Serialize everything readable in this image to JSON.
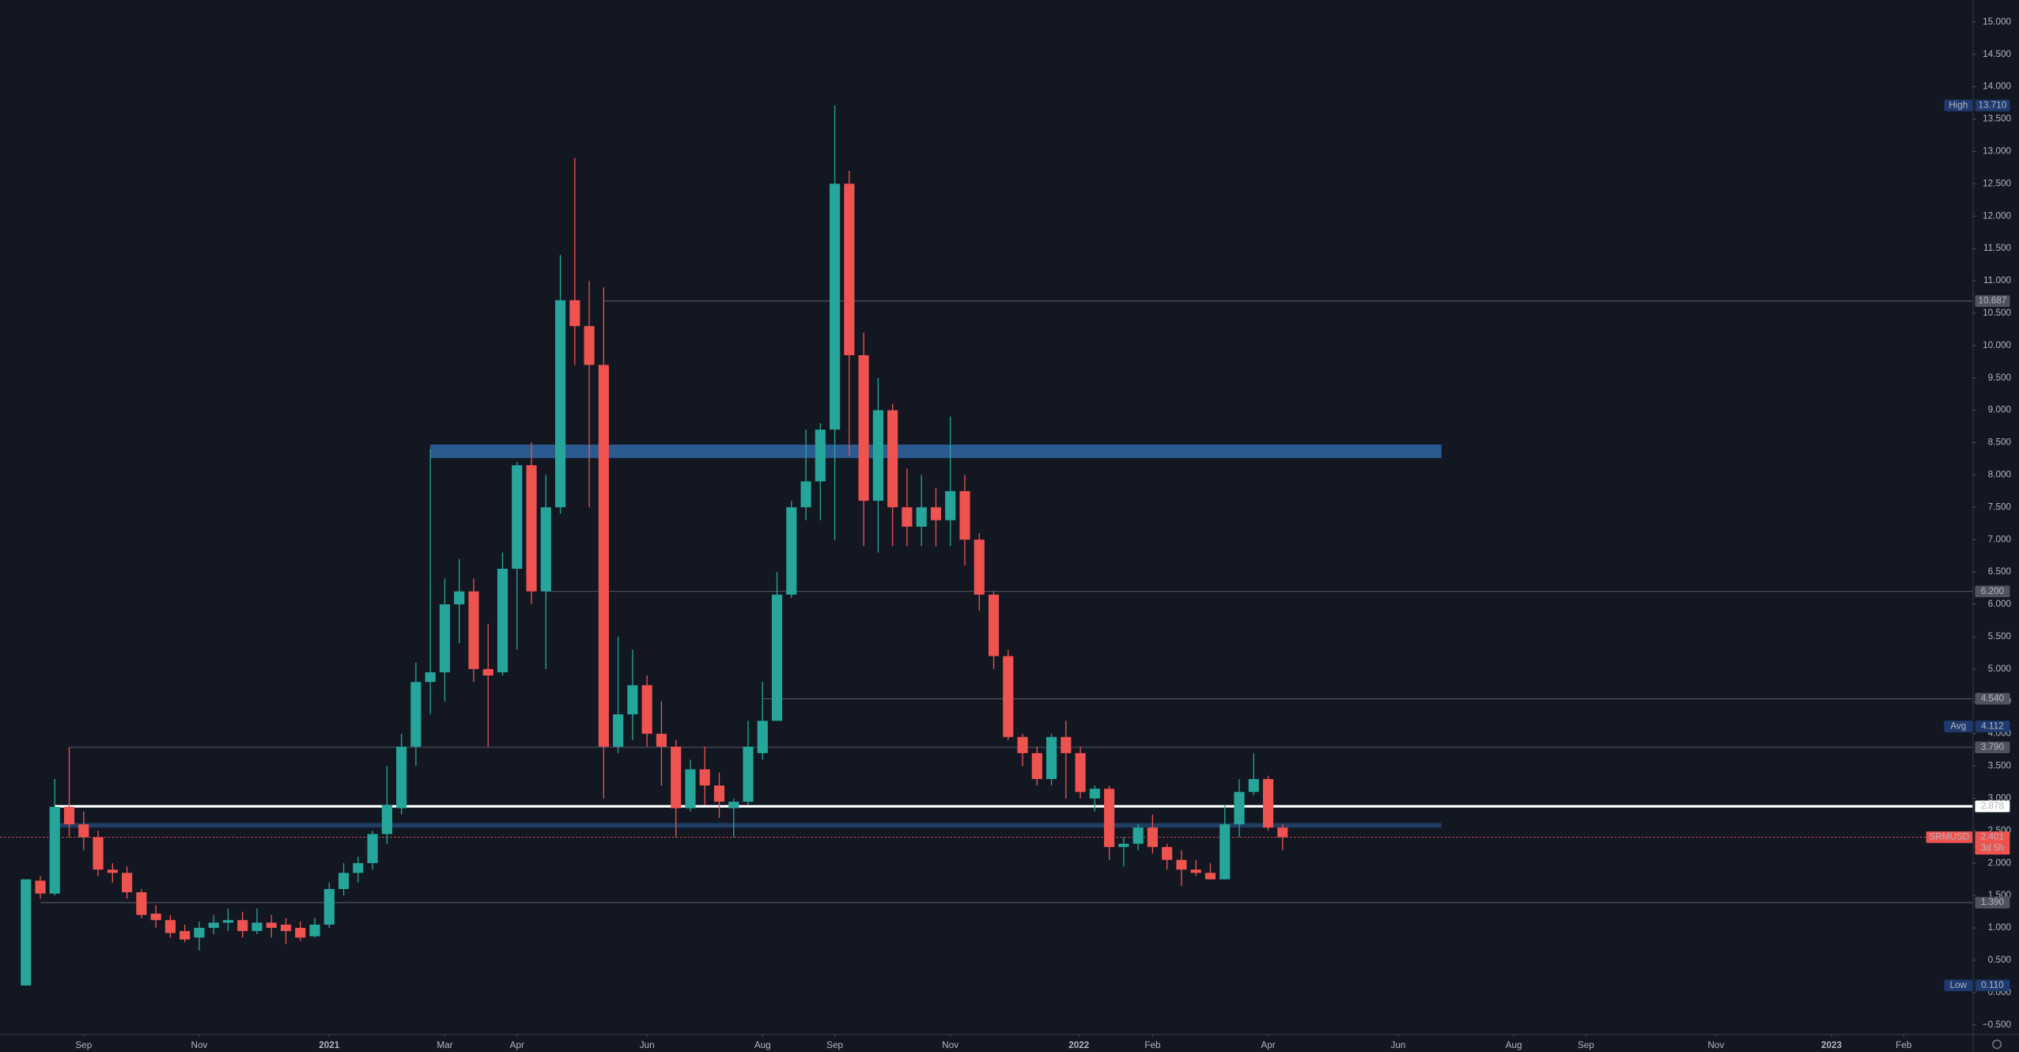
{
  "chart_data": {
    "type": "candlestick",
    "symbol": "SRMUSD",
    "countdown": "3d 5h",
    "up_color": "#26a69a",
    "down_color": "#ef5350",
    "open": [
      0.11,
      1.73,
      1.53,
      2.87,
      2.6,
      2.4,
      1.9,
      1.85,
      1.55,
      1.22,
      1.12,
      0.95,
      0.85,
      1.0,
      1.08,
      1.12,
      0.95,
      1.08,
      1.05,
      1.0,
      0.87,
      1.05,
      1.6,
      1.85,
      2.0,
      2.45,
      2.85,
      3.8,
      4.8,
      4.95,
      6.0,
      6.2,
      5.0,
      4.95,
      6.55,
      8.15,
      6.2,
      7.5,
      10.7,
      10.3,
      9.7,
      3.8,
      4.3,
      4.75,
      4.0,
      3.8,
      2.85,
      3.45,
      3.2,
      2.85,
      2.95,
      3.7,
      4.2,
      6.15,
      7.5,
      7.9,
      8.7,
      12.5,
      9.85,
      7.6,
      9.0,
      7.5,
      7.2,
      7.5,
      7.3,
      7.75,
      7.0,
      6.15,
      5.2,
      3.95,
      3.7,
      3.3,
      3.95,
      3.7,
      3.0,
      3.15,
      2.25,
      2.3,
      2.55,
      2.25,
      2.05,
      1.9,
      1.85,
      1.75,
      2.6,
      3.1,
      3.3,
      2.55
    ],
    "high": [
      1.75,
      1.8,
      3.3,
      3.79,
      2.8,
      2.5,
      2.0,
      1.95,
      1.6,
      1.35,
      1.2,
      1.05,
      1.1,
      1.2,
      1.3,
      1.25,
      1.3,
      1.2,
      1.15,
      1.1,
      1.15,
      1.7,
      2.0,
      2.1,
      2.5,
      3.5,
      4.0,
      5.1,
      8.4,
      6.4,
      6.7,
      6.4,
      5.7,
      6.8,
      8.2,
      8.5,
      8.0,
      11.4,
      12.9,
      11.0,
      10.9,
      5.5,
      5.3,
      4.9,
      4.5,
      3.9,
      3.6,
      3.8,
      3.4,
      3.0,
      4.2,
      4.8,
      6.5,
      7.6,
      8.7,
      8.8,
      13.71,
      12.7,
      10.2,
      9.5,
      9.1,
      8.1,
      8.0,
      7.8,
      8.9,
      8.0,
      7.1,
      6.2,
      5.3,
      4.0,
      3.8,
      4.0,
      4.2,
      3.8,
      3.2,
      3.2,
      2.4,
      2.6,
      2.75,
      2.3,
      2.2,
      2.05,
      2.0,
      2.9,
      3.3,
      3.7,
      3.35,
      2.6
    ],
    "low": [
      0.11,
      1.45,
      1.5,
      2.4,
      2.2,
      1.8,
      1.7,
      1.45,
      1.15,
      1.0,
      0.85,
      0.78,
      0.65,
      0.9,
      0.95,
      0.85,
      0.9,
      0.85,
      0.75,
      0.8,
      0.85,
      1.0,
      1.5,
      1.7,
      1.9,
      2.3,
      2.75,
      3.5,
      4.3,
      4.5,
      5.4,
      4.8,
      3.8,
      4.9,
      5.3,
      6.0,
      5.0,
      7.4,
      9.7,
      7.5,
      3.0,
      3.7,
      3.9,
      3.8,
      3.2,
      2.4,
      2.8,
      2.9,
      2.7,
      2.4,
      2.9,
      3.6,
      4.2,
      6.1,
      7.3,
      7.3,
      7.0,
      8.3,
      6.9,
      6.8,
      6.9,
      6.9,
      6.9,
      6.9,
      6.9,
      6.6,
      5.9,
      5.0,
      3.9,
      3.5,
      3.2,
      3.2,
      3.0,
      3.0,
      2.8,
      2.05,
      1.95,
      2.2,
      2.15,
      1.9,
      1.65,
      1.8,
      1.75,
      1.75,
      2.4,
      3.05,
      2.5,
      2.2
    ],
    "close": [
      1.75,
      1.53,
      2.87,
      2.6,
      2.4,
      1.9,
      1.85,
      1.55,
      1.2,
      1.12,
      0.92,
      0.82,
      1.0,
      1.08,
      1.12,
      0.95,
      1.08,
      1.0,
      0.95,
      0.85,
      1.05,
      1.6,
      1.85,
      2.0,
      2.45,
      2.9,
      3.8,
      4.8,
      4.95,
      6.0,
      6.2,
      5.0,
      4.9,
      6.55,
      8.15,
      6.2,
      7.5,
      10.7,
      10.3,
      9.7,
      3.8,
      4.3,
      4.75,
      4.0,
      3.8,
      2.85,
      3.45,
      3.2,
      2.95,
      2.95,
      3.8,
      4.2,
      6.15,
      7.5,
      7.9,
      8.7,
      12.5,
      9.85,
      7.6,
      9.0,
      7.5,
      7.2,
      7.5,
      7.3,
      7.75,
      7.0,
      6.15,
      5.2,
      3.95,
      3.7,
      3.3,
      3.95,
      3.7,
      3.1,
      3.15,
      2.25,
      2.3,
      2.55,
      2.25,
      2.05,
      1.9,
      1.85,
      1.75,
      2.6,
      3.1,
      3.3,
      2.55,
      2.4
    ],
    "xlim": [
      -1.78,
      134.76
    ],
    "xticks": [
      {
        "value": 4.0,
        "label": "Sep"
      },
      {
        "value": 12.0,
        "label": "Nov"
      },
      {
        "value": 21.0,
        "label": "2021"
      },
      {
        "value": 29.0,
        "label": "Mar"
      },
      {
        "value": 34.0,
        "label": "Apr"
      },
      {
        "value": 43.0,
        "label": "Jun"
      },
      {
        "value": 51.0,
        "label": "Aug"
      },
      {
        "value": 56.0,
        "label": "Sep"
      },
      {
        "value": 64.0,
        "label": "Nov"
      },
      {
        "value": 72.9,
        "label": "2022"
      },
      {
        "value": 78.0,
        "label": "Feb"
      },
      {
        "value": 86.0,
        "label": "Apr"
      },
      {
        "value": 95.0,
        "label": "Jun"
      },
      {
        "value": 103.0,
        "label": "Aug"
      },
      {
        "value": 108.0,
        "label": "Sep"
      },
      {
        "value": 117.0,
        "label": "Nov"
      },
      {
        "value": 125.0,
        "label": "2023"
      },
      {
        "value": 130.0,
        "label": "Feb"
      }
    ],
    "ylim": [
      -0.64,
      15.34
    ],
    "yticks": [
      {
        "value": -0.5,
        "label": "−0.500"
      },
      {
        "value": 0,
        "label": "0.000"
      },
      {
        "value": 0.5,
        "label": "0.500"
      },
      {
        "value": 1,
        "label": "1.000"
      },
      {
        "value": 1.5,
        "label": "1.500"
      },
      {
        "value": 2,
        "label": "2.000"
      },
      {
        "value": 2.5,
        "label": "2.500"
      },
      {
        "value": 3,
        "label": "3.000"
      },
      {
        "value": 3.5,
        "label": "3.500"
      },
      {
        "value": 4,
        "label": "4.000"
      },
      {
        "value": 4.5,
        "label": "4.500"
      },
      {
        "value": 5,
        "label": "5.000"
      },
      {
        "value": 5.5,
        "label": "5.500"
      },
      {
        "value": 6,
        "label": "6.000"
      },
      {
        "value": 6.5,
        "label": "6.500"
      },
      {
        "value": 7,
        "label": "7.000"
      },
      {
        "value": 7.5,
        "label": "7.500"
      },
      {
        "value": 8,
        "label": "8.000"
      },
      {
        "value": 8.5,
        "label": "8.500"
      },
      {
        "value": 9,
        "label": "9.000"
      },
      {
        "value": 9.5,
        "label": "9.500"
      },
      {
        "value": 10,
        "label": "10.000"
      },
      {
        "value": 10.5,
        "label": "10.500"
      },
      {
        "value": 11,
        "label": "11.000"
      },
      {
        "value": 11.5,
        "label": "11.500"
      },
      {
        "value": 12,
        "label": "12.000"
      },
      {
        "value": 12.5,
        "label": "12.500"
      },
      {
        "value": 13,
        "label": "13.000"
      },
      {
        "value": 13.5,
        "label": "13.500"
      },
      {
        "value": 14,
        "label": "14.000"
      },
      {
        "value": 14.5,
        "label": "14.500"
      },
      {
        "value": 15,
        "label": "15.000"
      }
    ],
    "levels": [
      {
        "name": "High",
        "value": 13.71,
        "label": "13.710",
        "style": "marker"
      },
      {
        "value": 10.687,
        "label": "10.687",
        "style": "gray",
        "from": 40
      },
      {
        "value": 6.2,
        "label": "6.200",
        "style": "gray",
        "from": 36
      },
      {
        "value": 4.54,
        "label": "4.540",
        "style": "gray",
        "from": 51
      },
      {
        "name": "Avg",
        "value": 4.112,
        "label": "4.112",
        "style": "marker"
      },
      {
        "value": 3.79,
        "label": "3.790",
        "style": "gray",
        "from": 3
      },
      {
        "value": 2.878,
        "label": "2.878",
        "style": "white",
        "from": 2
      },
      {
        "value": 1.39,
        "label": "1.390",
        "style": "gray",
        "from": 1
      },
      {
        "name": "Low",
        "value": 0.11,
        "label": "0.110",
        "style": "marker"
      }
    ],
    "last_price": {
      "value": 2.401,
      "label": "2.401"
    },
    "zones": [
      {
        "low": 8.26,
        "high": 8.47,
        "from": 28.0,
        "to": 98.0,
        "color": "#2a5a8f"
      },
      {
        "low": 2.55,
        "high": 2.62,
        "from": 2.0,
        "to": 98.0,
        "color": "#1f3e63"
      }
    ]
  }
}
